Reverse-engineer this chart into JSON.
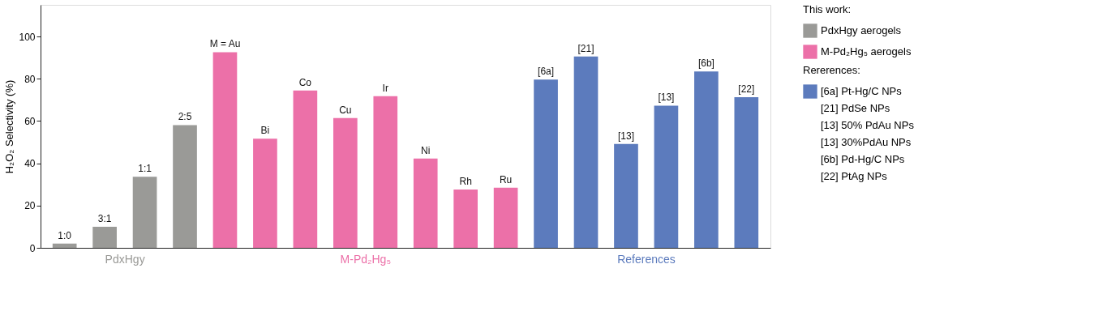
{
  "chart_data": {
    "type": "bar",
    "ylabel": "H₂O₂ Selectivity (%)",
    "categories": [
      "1:0",
      "3:1",
      "1:1",
      "2:5",
      "M = Au",
      "Bi",
      "Co",
      "Cu",
      "Ir",
      "Ni",
      "Rh",
      "Ru",
      "[6a]",
      "[21]",
      "[13]",
      "[13]",
      "[6b]",
      "[22]"
    ],
    "series": [
      {
        "name": "PdxHgy aerogels",
        "color": "#9a9a97",
        "values": [
          2,
          10,
          33.6,
          58.1,
          null,
          null,
          null,
          null,
          null,
          null,
          null,
          null,
          null,
          null,
          null,
          null,
          null,
          null
        ]
      },
      {
        "name": "M-Pd₂Hg₅ aerogels",
        "color": "#ec70a8",
        "values": [
          null,
          null,
          null,
          null,
          92.6,
          51.7,
          74.5,
          61.4,
          71.8,
          42.3,
          27.6,
          28.5,
          null,
          null,
          null,
          null,
          null,
          null
        ]
      },
      {
        "color": "#5c7bbd",
        "values": [
          null,
          null,
          null,
          null,
          null,
          null,
          null,
          null,
          null,
          null,
          null,
          null,
          79.6,
          90.6,
          49.2,
          67.3,
          83.5,
          71.3
        ]
      }
    ],
    "ylim": [
      0,
      115
    ],
    "yticks": [
      0,
      20,
      40,
      60,
      80,
      100
    ],
    "grid": false,
    "legend": "right",
    "legend_title": "This work:",
    "annotations": [
      "PdxHgy",
      "M-Pd₂Hg₅",
      "References",
      "Rererences:",
      "[6a]  Pt-Hg/C NPs",
      "[21]  PdSe NPs",
      "[13]  50% PdAu NPs",
      "[13]  30%PdAu NPs",
      "[6b]  Pd-Hg/C NPs",
      "[22]  PtAg NPs"
    ]
  }
}
